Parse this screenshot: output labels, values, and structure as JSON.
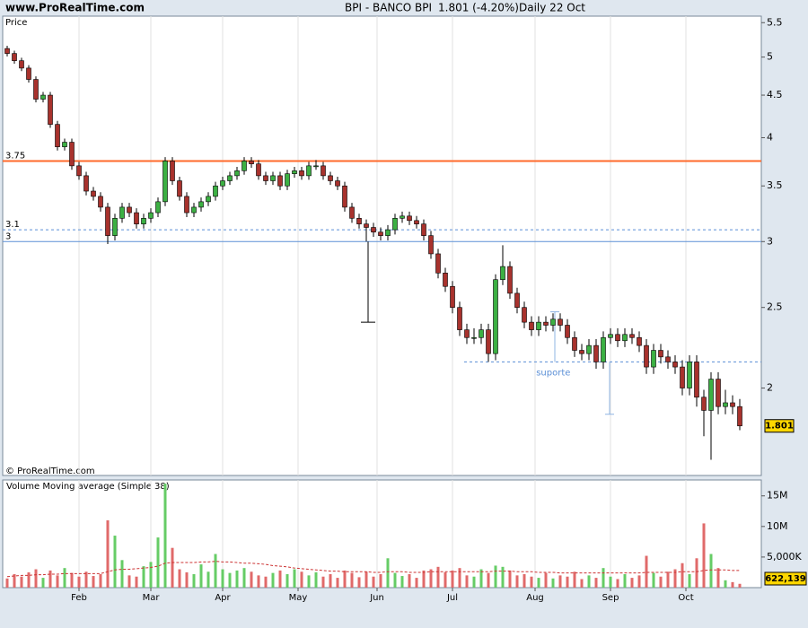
{
  "header": {
    "site": "www.ProRealTime.com",
    "symbol": "BPI - BANCO BPI",
    "quote": "1.801 (-4.20%)",
    "period": "Daily  22 Oct"
  },
  "chart_data": [
    {
      "type": "candlestick",
      "y_label": "Price",
      "credit": "© ProRealTime.com",
      "log_scale": true,
      "grid": "x",
      "up_color": "#3cb043",
      "down_color": "#a8322d",
      "price_tag": 1.801,
      "xlim": [
        -1.25,
        210
      ],
      "ylim": [
        1.57,
        5.6
      ],
      "xticks": [
        {
          "value": 20,
          "label": "Feb"
        },
        {
          "value": 40,
          "label": "Mar"
        },
        {
          "value": 60,
          "label": "Apr"
        },
        {
          "value": 81,
          "label": "May"
        },
        {
          "value": 103,
          "label": "Jun"
        },
        {
          "value": 124,
          "label": "Jul"
        },
        {
          "value": 147,
          "label": "Aug"
        },
        {
          "value": 168,
          "label": "Sep"
        },
        {
          "value": 189,
          "label": "Oct"
        }
      ],
      "yticks": [
        2,
        2.5,
        3,
        3.5,
        4,
        4.5,
        5,
        5.5
      ],
      "hlines": [
        {
          "value": 3.75,
          "label": "3.75",
          "color": "#ff6a2b",
          "style": "solid"
        },
        {
          "value": 3.1,
          "label": "3.1",
          "color": "#5b8fd6",
          "style": "dashed"
        },
        {
          "value": 3,
          "label": "3",
          "color": "#5b8fd6",
          "style": "solid"
        }
      ],
      "annotations": [
        {
          "text": "suporte",
          "value": 2.15,
          "x": 127.25,
          "color": "#5b8fd6"
        }
      ],
      "segments": [
        {
          "x": 100.5,
          "from": 3,
          "to": 2.4,
          "color": "#000000"
        },
        {
          "x": 152.5,
          "from": 2.15,
          "to": 2.47,
          "color": "#8fb4e3"
        },
        {
          "x": 167.75,
          "from": 2.15,
          "to": 1.86,
          "color": "#8fb4e3"
        }
      ],
      "x": [
        0,
        2,
        4,
        6,
        8,
        10,
        12,
        14,
        16,
        18,
        20,
        22,
        24,
        26,
        28,
        30,
        32,
        34,
        36,
        38,
        40,
        42,
        44,
        46,
        48,
        50,
        52,
        54,
        56,
        58,
        60,
        62,
        64,
        66,
        68,
        70,
        72,
        74,
        76,
        78,
        80,
        82,
        84,
        86,
        88,
        90,
        92,
        94,
        96,
        98,
        100,
        102,
        104,
        106,
        108,
        110,
        112,
        114,
        116,
        118,
        120,
        122,
        124,
        126,
        128,
        130,
        132,
        134,
        136,
        138,
        140,
        142,
        144,
        146,
        148,
        150,
        152,
        154,
        156,
        158,
        160,
        162,
        164,
        166,
        168,
        170,
        172,
        174,
        176,
        178,
        180,
        182,
        184,
        186,
        188,
        190,
        192,
        194,
        196,
        198,
        200,
        202,
        204
      ],
      "open": [
        5.12,
        5.05,
        4.95,
        4.85,
        4.7,
        4.45,
        4.5,
        4.15,
        3.9,
        3.95,
        3.7,
        3.6,
        3.45,
        3.4,
        3.3,
        3.05,
        3.2,
        3.3,
        3.25,
        3.15,
        3.2,
        3.25,
        3.35,
        3.75,
        3.55,
        3.4,
        3.25,
        3.3,
        3.35,
        3.4,
        3.5,
        3.55,
        3.6,
        3.65,
        3.75,
        3.72,
        3.6,
        3.55,
        3.6,
        3.5,
        3.62,
        3.65,
        3.6,
        3.7,
        3.7,
        3.6,
        3.55,
        3.5,
        3.3,
        3.2,
        3.15,
        3.12,
        3.08,
        3.05,
        3.1,
        3.2,
        3.22,
        3.18,
        3.15,
        3.05,
        2.9,
        2.75,
        2.65,
        2.5,
        2.35,
        2.3,
        2.3,
        2.35,
        2.2,
        2.7,
        2.8,
        2.6,
        2.5,
        2.4,
        2.35,
        2.4,
        2.38,
        2.42,
        2.38,
        2.3,
        2.22,
        2.2,
        2.25,
        2.15,
        2.3,
        2.32,
        2.28,
        2.32,
        2.3,
        2.25,
        2.12,
        2.22,
        2.18,
        2.15,
        2.12,
        2.0,
        2.15,
        1.95,
        1.88,
        2.05,
        1.9,
        1.92,
        1.9
      ],
      "high": [
        5.16,
        5.09,
        4.99,
        4.89,
        4.74,
        4.54,
        4.54,
        4.19,
        3.99,
        3.99,
        3.74,
        3.64,
        3.49,
        3.44,
        3.34,
        3.24,
        3.34,
        3.34,
        3.29,
        3.24,
        3.29,
        3.39,
        3.79,
        3.79,
        3.59,
        3.44,
        3.34,
        3.39,
        3.44,
        3.54,
        3.59,
        3.64,
        3.69,
        3.79,
        3.79,
        3.76,
        3.64,
        3.64,
        3.64,
        3.66,
        3.69,
        3.69,
        3.74,
        3.76,
        3.74,
        3.64,
        3.59,
        3.54,
        3.34,
        3.24,
        3.19,
        3.16,
        3.12,
        3.14,
        3.24,
        3.26,
        3.26,
        3.22,
        3.19,
        3.09,
        2.94,
        2.79,
        2.69,
        2.54,
        2.39,
        2.36,
        2.39,
        2.39,
        2.74,
        2.97,
        2.84,
        2.64,
        2.54,
        2.44,
        2.44,
        2.44,
        2.46,
        2.46,
        2.42,
        2.34,
        2.26,
        2.29,
        2.29,
        2.34,
        2.36,
        2.36,
        2.36,
        2.36,
        2.34,
        2.29,
        2.26,
        2.26,
        2.22,
        2.19,
        2.16,
        2.19,
        2.19,
        1.99,
        2.09,
        2.09,
        1.99,
        1.96,
        1.94
      ],
      "low": [
        5.01,
        4.91,
        4.81,
        4.66,
        4.41,
        4.41,
        4.11,
        3.86,
        3.86,
        3.66,
        3.56,
        3.41,
        3.36,
        3.26,
        2.98,
        3.01,
        3.16,
        3.21,
        3.11,
        3.11,
        3.16,
        3.21,
        3.31,
        3.51,
        3.36,
        3.21,
        3.21,
        3.26,
        3.31,
        3.36,
        3.46,
        3.51,
        3.56,
        3.61,
        3.68,
        3.56,
        3.51,
        3.51,
        3.46,
        3.46,
        3.58,
        3.56,
        3.56,
        3.66,
        3.56,
        3.51,
        3.46,
        3.26,
        3.16,
        3.11,
        3.0,
        3.04,
        3.01,
        3.01,
        3.06,
        3.16,
        3.14,
        3.11,
        3.01,
        2.86,
        2.71,
        2.61,
        2.46,
        2.31,
        2.26,
        2.26,
        2.26,
        2.15,
        2.16,
        2.66,
        2.56,
        2.46,
        2.36,
        2.31,
        2.31,
        2.34,
        2.34,
        2.34,
        2.26,
        2.18,
        2.16,
        2.16,
        2.11,
        2.11,
        2.26,
        2.24,
        2.24,
        2.26,
        2.21,
        2.08,
        2.08,
        2.14,
        2.11,
        2.08,
        1.96,
        1.96,
        1.9,
        1.75,
        1.64,
        1.86,
        1.86,
        1.86,
        1.78
      ],
      "close": [
        5.05,
        4.95,
        4.85,
        4.7,
        4.45,
        4.5,
        4.15,
        3.9,
        3.95,
        3.7,
        3.6,
        3.45,
        3.4,
        3.3,
        3.05,
        3.2,
        3.3,
        3.25,
        3.15,
        3.2,
        3.25,
        3.35,
        3.75,
        3.55,
        3.4,
        3.25,
        3.3,
        3.35,
        3.4,
        3.5,
        3.55,
        3.6,
        3.65,
        3.75,
        3.72,
        3.6,
        3.55,
        3.6,
        3.5,
        3.62,
        3.65,
        3.6,
        3.7,
        3.7,
        3.6,
        3.55,
        3.5,
        3.3,
        3.2,
        3.15,
        3.12,
        3.08,
        3.05,
        3.1,
        3.2,
        3.22,
        3.18,
        3.15,
        3.05,
        2.9,
        2.75,
        2.65,
        2.5,
        2.35,
        2.3,
        2.3,
        2.35,
        2.2,
        2.7,
        2.8,
        2.6,
        2.5,
        2.4,
        2.35,
        2.4,
        2.38,
        2.42,
        2.38,
        2.3,
        2.22,
        2.2,
        2.25,
        2.15,
        2.3,
        2.32,
        2.28,
        2.32,
        2.3,
        2.25,
        2.12,
        2.22,
        2.18,
        2.15,
        2.12,
        2.0,
        2.15,
        1.95,
        1.88,
        2.05,
        1.9,
        1.92,
        1.9,
        1.801
      ]
    },
    {
      "type": "bar",
      "title": "Volume Moving average (Simple 38)",
      "title_color": "#d04040",
      "up_color": "#66cc66",
      "down_color": "#e06a6a",
      "ma_color": "#cc3333",
      "ylim": [
        0,
        17.6
      ],
      "yticks": [
        {
          "value": 5,
          "label": "5,000K"
        },
        {
          "value": 10,
          "label": "10M"
        },
        {
          "value": 15,
          "label": "15M"
        }
      ],
      "volume_tag": 0.622139,
      "volume_tag_label": "622,139",
      "values": [
        1.5,
        2.2,
        1.8,
        2.5,
        3.0,
        1.6,
        2.8,
        2.0,
        3.2,
        2.4,
        1.8,
        2.6,
        1.9,
        2.2,
        11.0,
        8.5,
        4.5,
        2.0,
        1.8,
        3.5,
        4.2,
        8.2,
        17.0,
        6.5,
        3.0,
        2.5,
        2.2,
        3.8,
        2.6,
        5.5,
        3.0,
        2.4,
        2.8,
        3.2,
        2.6,
        2.0,
        1.8,
        2.4,
        2.8,
        2.2,
        3.0,
        2.6,
        2.0,
        2.5,
        1.8,
        2.2,
        1.6,
        2.8,
        2.4,
        1.7,
        2.6,
        1.8,
        2.2,
        4.8,
        2.4,
        1.9,
        2.2,
        1.6,
        2.8,
        3.0,
        3.4,
        2.5,
        2.8,
        3.2,
        2.0,
        1.8,
        3.0,
        2.4,
        3.6,
        3.4,
        2.8,
        2.0,
        2.2,
        1.8,
        1.6,
        2.4,
        1.5,
        2.0,
        1.8,
        2.6,
        1.4,
        2.0,
        1.6,
        3.2,
        1.8,
        1.4,
        2.2,
        1.6,
        2.0,
        5.2,
        2.4,
        1.8,
        2.6,
        3.0,
        4.0,
        2.2,
        4.8,
        10.5,
        5.5,
        3.2,
        1.2,
        0.9,
        0.622139
      ],
      "ma_values": [
        1.8,
        1.9,
        2.0,
        2.0,
        2.1,
        2.1,
        2.2,
        2.2,
        2.3,
        2.3,
        2.3,
        2.3,
        2.3,
        2.3,
        2.6,
        2.9,
        3.0,
        3.0,
        3.1,
        3.2,
        3.3,
        3.5,
        4.0,
        4.1,
        4.1,
        4.1,
        4.1,
        4.2,
        4.2,
        4.3,
        4.2,
        4.2,
        4.1,
        4.0,
        4.0,
        3.9,
        3.8,
        3.6,
        3.5,
        3.4,
        3.2,
        3.1,
        3.0,
        2.9,
        2.8,
        2.7,
        2.7,
        2.6,
        2.6,
        2.6,
        2.6,
        2.5,
        2.5,
        2.6,
        2.6,
        2.6,
        2.5,
        2.5,
        2.5,
        2.6,
        2.6,
        2.6,
        2.6,
        2.6,
        2.6,
        2.6,
        2.6,
        2.6,
        2.7,
        2.7,
        2.7,
        2.6,
        2.6,
        2.6,
        2.5,
        2.5,
        2.5,
        2.4,
        2.4,
        2.4,
        2.4,
        2.4,
        2.4,
        2.4,
        2.4,
        2.4,
        2.4,
        2.4,
        2.4,
        2.5,
        2.5,
        2.5,
        2.5,
        2.5,
        2.6,
        2.6,
        2.6,
        2.8,
        2.9,
        2.9,
        2.9,
        2.8,
        2.8
      ]
    }
  ]
}
